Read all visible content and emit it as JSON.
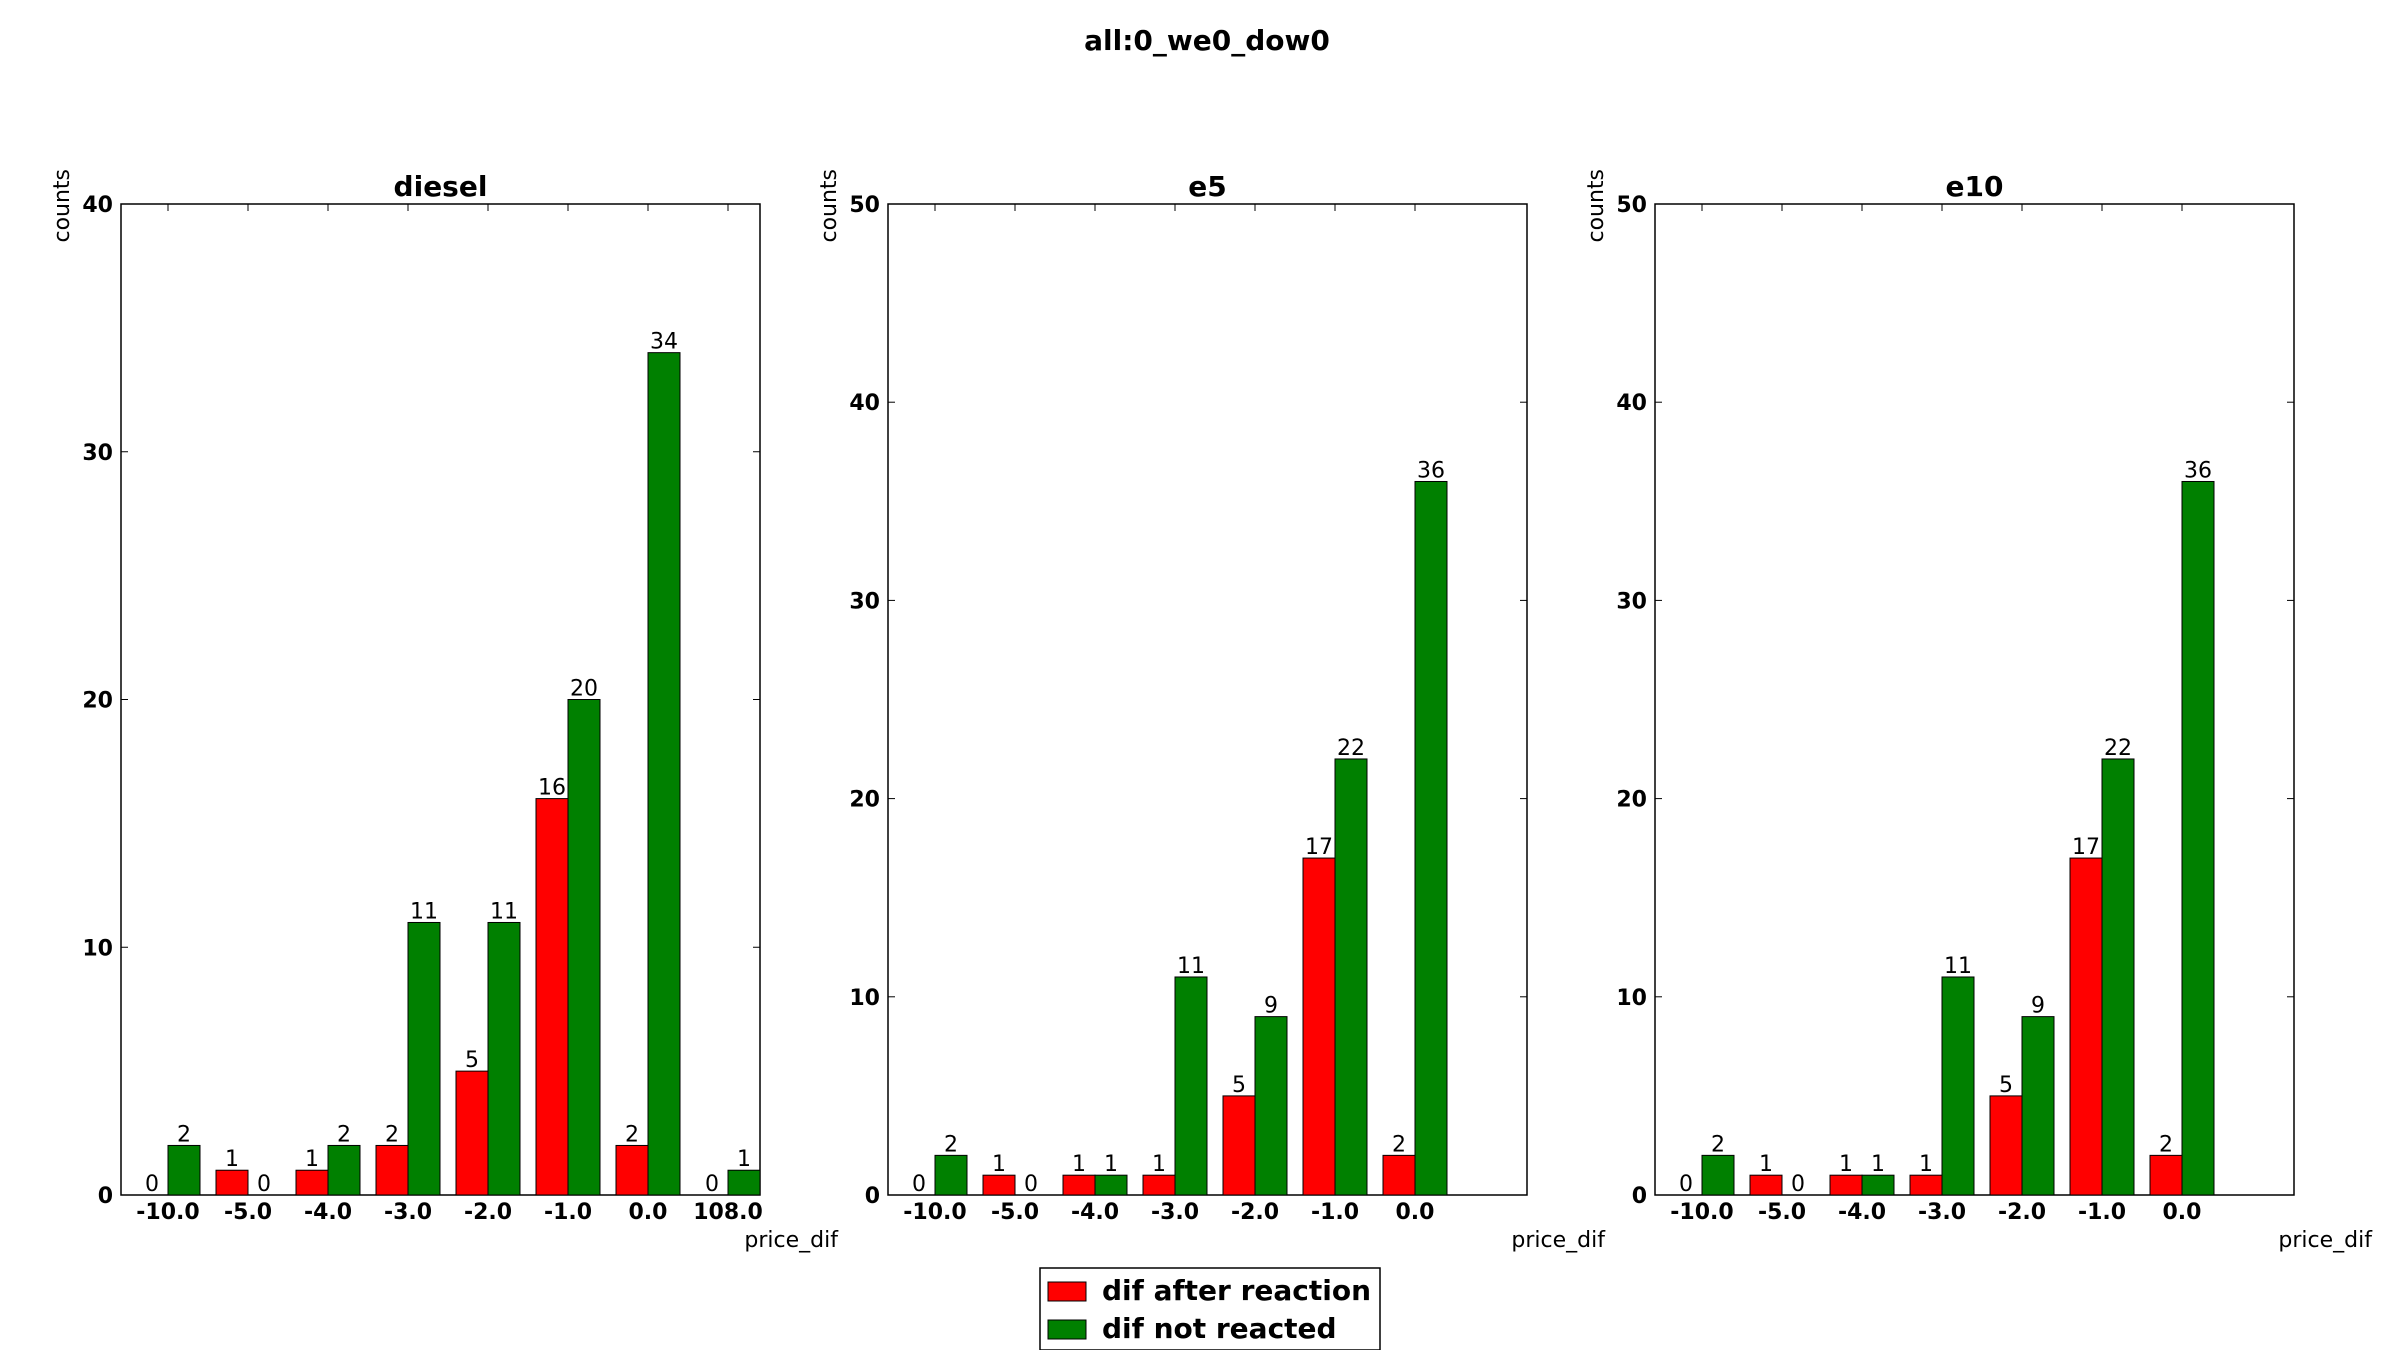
{
  "figure_title": "all:0_we0_dow0",
  "colors": {
    "reaction": "#ff0000",
    "not_reacted": "#008000",
    "axis": "#000000",
    "background": "#ffffff"
  },
  "legend": {
    "placement": "bottom-center",
    "entries": [
      {
        "label": "dif after reaction",
        "color": "#ff0000"
      },
      {
        "label": "dif not reacted",
        "color": "#008000"
      }
    ]
  },
  "chart_data": [
    {
      "type": "bar",
      "title": "diesel",
      "xlabel": "price_dif",
      "ylabel": "counts",
      "ylim": [
        0,
        40
      ],
      "yticks": [
        0,
        10,
        20,
        30,
        40
      ],
      "grid": false,
      "categories": [
        "-10.0",
        "-5.0",
        "-4.0",
        "-3.0",
        "-2.0",
        "-1.0",
        "0.0",
        "108.0"
      ],
      "series": [
        {
          "name": "dif after reaction",
          "color": "#ff0000",
          "values": [
            0,
            1,
            1,
            2,
            5,
            16,
            2,
            0
          ]
        },
        {
          "name": "dif not reacted",
          "color": "#008000",
          "values": [
            2,
            0,
            2,
            11,
            11,
            20,
            34,
            1
          ]
        }
      ]
    },
    {
      "type": "bar",
      "title": "e5",
      "xlabel": "price_dif",
      "ylabel": "counts",
      "ylim": [
        0,
        50
      ],
      "yticks": [
        0,
        10,
        20,
        30,
        40,
        50
      ],
      "grid": false,
      "categories": [
        "-10.0",
        "-5.0",
        "-4.0",
        "-3.0",
        "-2.0",
        "-1.0",
        "0.0"
      ],
      "series": [
        {
          "name": "dif after reaction",
          "color": "#ff0000",
          "values": [
            0,
            1,
            1,
            1,
            5,
            17,
            2
          ]
        },
        {
          "name": "dif not reacted",
          "color": "#008000",
          "values": [
            2,
            0,
            1,
            11,
            9,
            22,
            36
          ]
        }
      ]
    },
    {
      "type": "bar",
      "title": "e10",
      "xlabel": "price_dif",
      "ylabel": "counts",
      "ylim": [
        0,
        50
      ],
      "yticks": [
        0,
        10,
        20,
        30,
        40,
        50
      ],
      "grid": false,
      "categories": [
        "-10.0",
        "-5.0",
        "-4.0",
        "-3.0",
        "-2.0",
        "-1.0",
        "0.0"
      ],
      "series": [
        {
          "name": "dif after reaction",
          "color": "#ff0000",
          "values": [
            0,
            1,
            1,
            1,
            5,
            17,
            2
          ]
        },
        {
          "name": "dif not reacted",
          "color": "#008000",
          "values": [
            2,
            0,
            1,
            11,
            9,
            22,
            36
          ]
        }
      ]
    }
  ]
}
